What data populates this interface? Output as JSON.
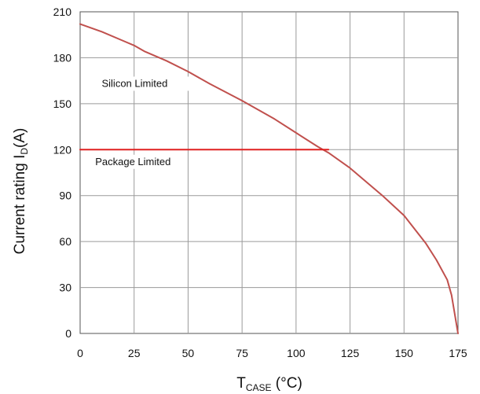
{
  "chart_data": {
    "type": "line",
    "title": "",
    "xlabel": {
      "main": "T",
      "sub": "CASE",
      "suffix": " (°C)"
    },
    "ylabel": {
      "main": "Current rating I",
      "sub": "D",
      "suffix": "(A)"
    },
    "xlim": [
      0,
      175
    ],
    "ylim": [
      0,
      210
    ],
    "xticks": [
      0,
      25,
      50,
      75,
      100,
      125,
      150,
      175
    ],
    "yticks": [
      0,
      30,
      60,
      90,
      120,
      150,
      180,
      210
    ],
    "grid": true,
    "series": [
      {
        "key": "silicon",
        "color": "#c0504d",
        "points": [
          [
            0,
            202
          ],
          [
            10,
            197
          ],
          [
            20,
            191
          ],
          [
            25,
            188
          ],
          [
            30,
            184
          ],
          [
            40,
            178
          ],
          [
            50,
            171
          ],
          [
            60,
            163
          ],
          [
            75,
            152
          ],
          [
            90,
            140
          ],
          [
            100,
            131
          ],
          [
            110,
            122
          ],
          [
            115,
            118
          ],
          [
            125,
            108
          ],
          [
            140,
            90
          ],
          [
            150,
            77
          ],
          [
            160,
            59
          ],
          [
            165,
            48
          ],
          [
            170,
            35
          ],
          [
            172,
            25
          ],
          [
            175,
            0
          ]
        ]
      },
      {
        "key": "package",
        "color": "#e02020",
        "points": [
          [
            0,
            120
          ],
          [
            115,
            120
          ]
        ]
      }
    ],
    "annotations": [
      {
        "key": "silicon",
        "text": "Silicon Limited",
        "x": 10,
        "y": 161
      },
      {
        "key": "package",
        "text": "Package Limited",
        "x": 7,
        "y": 110
      }
    ]
  }
}
